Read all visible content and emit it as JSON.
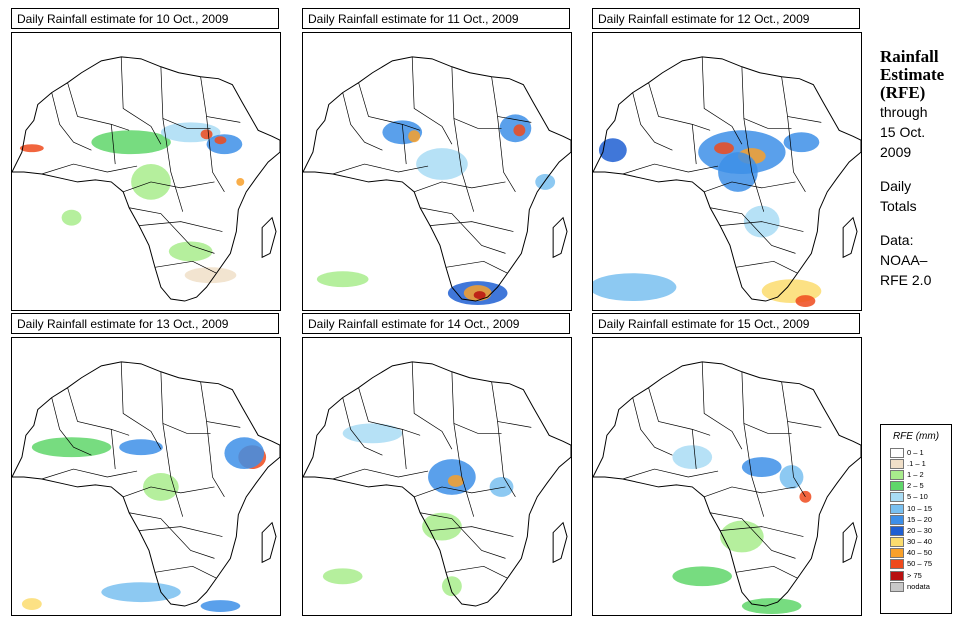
{
  "panels": [
    {
      "title": "Daily Rainfall estimate for  10 Oct., 2009"
    },
    {
      "title": "Daily Rainfall estimate for  11 Oct., 2009"
    },
    {
      "title": "Daily Rainfall estimate for  12 Oct., 2009"
    },
    {
      "title": "Daily Rainfall estimate for  13 Oct., 2009"
    },
    {
      "title": "Daily Rainfall estimate for  14 Oct., 2009"
    },
    {
      "title": "Daily Rainfall estimate for  15 Oct., 2009"
    }
  ],
  "side": {
    "title_line1": "Rainfall",
    "title_line2": "Estimate",
    "title_line3": "(RFE)",
    "through": "through",
    "date_line1": "15 Oct.",
    "date_line2": "2009",
    "daily": "Daily",
    "totals": "Totals",
    "data_label": "Data:",
    "source_line1": "NOAA–",
    "source_line2": "RFE 2.0"
  },
  "legend": {
    "title": "RFE (mm)",
    "items": [
      {
        "label": "0 – 1",
        "color": "#ffffff"
      },
      {
        "label": ".1 – 1",
        "color": "#f0dfc8"
      },
      {
        "label": "1 – 2",
        "color": "#a8ec8c"
      },
      {
        "label": "2 – 5",
        "color": "#5fd66a"
      },
      {
        "label": "5 – 10",
        "color": "#a9dcf4"
      },
      {
        "label": "10 – 15",
        "color": "#79c0f0"
      },
      {
        "label": "15 – 20",
        "color": "#3d8fe8"
      },
      {
        "label": "20 – 30",
        "color": "#1f5fd2"
      },
      {
        "label": "30 – 40",
        "color": "#fbdc6e"
      },
      {
        "label": "40 – 50",
        "color": "#f8a02a"
      },
      {
        "label": "50 – 75",
        "color": "#ef4a1c"
      },
      {
        "label": "> 75",
        "color": "#b81010"
      },
      {
        "label": "nodata",
        "color": "#c8c8c8"
      }
    ]
  },
  "colors": {
    "border": "#000000",
    "background": "#ffffff"
  }
}
